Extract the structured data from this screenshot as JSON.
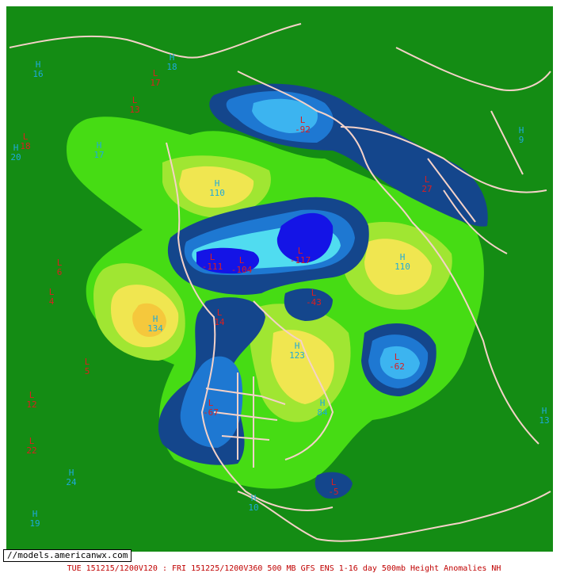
{
  "watermark": "//models.americanwx.com",
  "caption": "TUE 151215/1200V120 : FRI 151225/1200V360  500 MB GFS ENS 1-16 day 500mb Height Anomalies NH",
  "colors": {
    "background": "#148c14",
    "light_green": "#46dc14",
    "yellow_green": "#a0e632",
    "yellow": "#f0e650",
    "orange": "#f5c83c",
    "dark_blue": "#14468c",
    "mid_blue": "#1e78d2",
    "light_blue": "#3cb4f0",
    "cyan": "#50dcf0",
    "deep_blue": "#1414e6",
    "coastline": "#f5d2c8",
    "high_label": "#1eaadc",
    "low_label": "#dc1e1e"
  },
  "labels": [
    {
      "type": "H",
      "value": "110"
    },
    {
      "type": "H",
      "value": "134"
    },
    {
      "type": "H",
      "value": "123"
    },
    {
      "type": "H",
      "value": "110"
    },
    {
      "type": "H",
      "value": "84"
    },
    {
      "type": "L",
      "value": "-92"
    },
    {
      "type": "L",
      "value": "-111"
    },
    {
      "type": "L",
      "value": "-104"
    },
    {
      "type": "L",
      "value": "-117"
    },
    {
      "type": "L",
      "value": "-43"
    },
    {
      "type": "L",
      "value": "-62"
    },
    {
      "type": "L",
      "value": "-67"
    },
    {
      "type": "L",
      "value": "-5"
    },
    {
      "type": "L",
      "value": "14"
    },
    {
      "type": "L",
      "value": "17"
    },
    {
      "type": "L",
      "value": "27"
    },
    {
      "type": "L",
      "value": "18"
    },
    {
      "type": "L",
      "value": "13"
    },
    {
      "type": "L",
      "value": "6"
    },
    {
      "type": "L",
      "value": "4"
    },
    {
      "type": "L",
      "value": "5"
    },
    {
      "type": "L",
      "value": "12"
    },
    {
      "type": "L",
      "value": "22"
    },
    {
      "type": "H",
      "value": "24"
    },
    {
      "type": "H",
      "value": "16"
    },
    {
      "type": "H",
      "value": "18"
    },
    {
      "type": "H",
      "value": "20"
    },
    {
      "type": "H",
      "value": "17"
    },
    {
      "type": "H",
      "value": "13"
    },
    {
      "type": "H",
      "value": "19"
    },
    {
      "type": "H",
      "value": "10"
    },
    {
      "type": "H",
      "value": "9"
    }
  ]
}
